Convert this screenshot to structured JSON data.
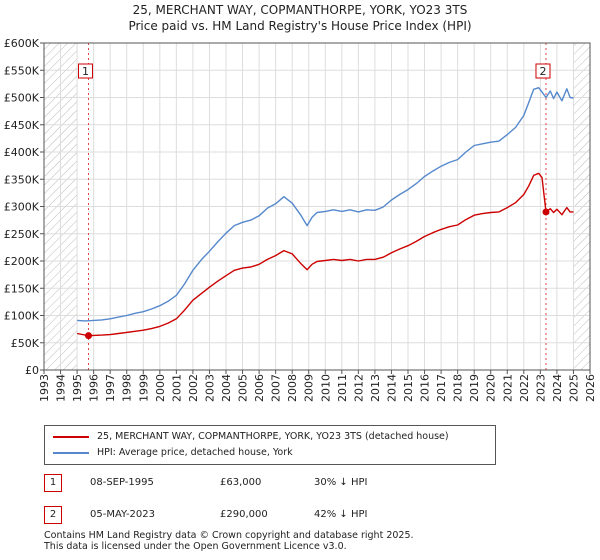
{
  "title_line1": "25, MERCHANT WAY, COPMANTHORPE, YORK, YO23 3TS",
  "title_line2": "Price paid vs. HM Land Registry's House Price Index (HPI)",
  "chart_data": {
    "type": "line",
    "title": "25, MERCHANT WAY, COPMANTHORPE, YORK, YO23 3TS — Price paid vs. HM Land Registry's House Price Index (HPI)",
    "xlabel": "",
    "ylabel": "",
    "xlim": [
      1993,
      2026
    ],
    "ylim": [
      0,
      600000
    ],
    "x_ticks": [
      1993,
      1994,
      1995,
      1996,
      1997,
      1998,
      1999,
      2000,
      2001,
      2002,
      2003,
      2004,
      2005,
      2006,
      2007,
      2008,
      2009,
      2010,
      2011,
      2012,
      2013,
      2014,
      2015,
      2016,
      2017,
      2018,
      2019,
      2020,
      2021,
      2022,
      2023,
      2024,
      2025,
      2026
    ],
    "y_ticks": [
      0,
      50000,
      100000,
      150000,
      200000,
      250000,
      300000,
      350000,
      400000,
      450000,
      500000,
      550000,
      600000
    ],
    "y_tick_labels": [
      "£0",
      "£50K",
      "£100K",
      "£150K",
      "£200K",
      "£250K",
      "£300K",
      "£350K",
      "£400K",
      "£450K",
      "£500K",
      "£550K",
      "£600K"
    ],
    "grid": true,
    "hatched_regions": [
      [
        1993,
        1995.0
      ],
      [
        2025.0,
        2026
      ]
    ],
    "series": [
      {
        "name": "25, MERCHANT WAY, COPMANTHORPE, YORK, YO23 3TS (detached house)",
        "color": "#cc0000",
        "x": [
          1995.0,
          1995.69,
          1996.0,
          1996.5,
          1997.0,
          1997.5,
          1998.0,
          1998.5,
          1999.0,
          1999.5,
          2000.0,
          2000.5,
          2001.0,
          2001.5,
          2002.0,
          2002.5,
          2003.0,
          2003.5,
          2004.0,
          2004.5,
          2005.0,
          2005.5,
          2006.0,
          2006.5,
          2007.0,
          2007.5,
          2008.0,
          2008.5,
          2008.9,
          2009.2,
          2009.5,
          2010.0,
          2010.5,
          2011.0,
          2011.5,
          2012.0,
          2012.5,
          2013.0,
          2013.5,
          2014.0,
          2014.5,
          2015.0,
          2015.5,
          2016.0,
          2016.5,
          2017.0,
          2017.5,
          2018.0,
          2018.5,
          2019.0,
          2019.5,
          2020.0,
          2020.5,
          2021.0,
          2021.5,
          2022.0,
          2022.3,
          2022.6,
          2022.9,
          2023.1,
          2023.34,
          2023.6,
          2023.8,
          2024.0,
          2024.3,
          2024.6,
          2024.8,
          2025.0
        ],
        "values": [
          67000,
          63000,
          63500,
          64000,
          65000,
          67000,
          69000,
          71000,
          73000,
          76000,
          80000,
          86000,
          94000,
          110000,
          128000,
          140000,
          152000,
          163000,
          173000,
          183000,
          187000,
          189000,
          194000,
          203000,
          210000,
          219000,
          213000,
          196000,
          184000,
          194000,
          199000,
          201000,
          203000,
          201000,
          203000,
          200000,
          203000,
          203000,
          207000,
          215000,
          222000,
          228000,
          236000,
          245000,
          252000,
          258000,
          263000,
          266000,
          276000,
          284000,
          287000,
          289000,
          290000,
          298000,
          307000,
          322000,
          338000,
          357000,
          361000,
          353000,
          290000,
          296000,
          289000,
          295000,
          285000,
          298000,
          290000,
          290000
        ]
      },
      {
        "name": "HPI: Average price, detached house, York",
        "color": "#5588cc",
        "x": [
          1995.0,
          1995.5,
          1996.0,
          1996.5,
          1997.0,
          1997.5,
          1998.0,
          1998.5,
          1999.0,
          1999.5,
          2000.0,
          2000.5,
          2001.0,
          2001.5,
          2002.0,
          2002.5,
          2003.0,
          2003.5,
          2004.0,
          2004.5,
          2005.0,
          2005.5,
          2006.0,
          2006.5,
          2007.0,
          2007.5,
          2008.0,
          2008.5,
          2008.9,
          2009.2,
          2009.5,
          2010.0,
          2010.5,
          2011.0,
          2011.5,
          2012.0,
          2012.5,
          2013.0,
          2013.5,
          2014.0,
          2014.5,
          2015.0,
          2015.5,
          2016.0,
          2016.5,
          2017.0,
          2017.5,
          2018.0,
          2018.5,
          2019.0,
          2019.5,
          2020.0,
          2020.5,
          2021.0,
          2021.5,
          2022.0,
          2022.3,
          2022.6,
          2022.9,
          2023.1,
          2023.34,
          2023.6,
          2023.8,
          2024.0,
          2024.3,
          2024.6,
          2024.8,
          2025.0
        ],
        "values": [
          91000,
          90000,
          91000,
          92000,
          94000,
          97000,
          100000,
          104000,
          107000,
          112000,
          118000,
          126000,
          137000,
          158000,
          183000,
          202000,
          218000,
          235000,
          251000,
          265000,
          271000,
          275000,
          283000,
          297000,
          305000,
          318000,
          306000,
          285000,
          265000,
          280000,
          289000,
          291000,
          294000,
          291000,
          294000,
          290000,
          294000,
          293000,
          299000,
          312000,
          322000,
          331000,
          342000,
          355000,
          365000,
          374000,
          381000,
          386000,
          400000,
          412000,
          415000,
          418000,
          420000,
          432000,
          445000,
          467000,
          491000,
          515000,
          518000,
          510000,
          500000,
          512000,
          498000,
          510000,
          494000,
          516000,
          500000,
          499000
        ]
      }
    ],
    "annotations": [
      {
        "label": "1",
        "x": 1995.69,
        "y": 63000
      },
      {
        "label": "2",
        "x": 2023.34,
        "y": 290000
      }
    ]
  },
  "legend": {
    "series1": "25, MERCHANT WAY, COPMANTHORPE, YORK, YO23 3TS (detached house)",
    "series2": "HPI: Average price, detached house, York"
  },
  "table": [
    {
      "num": "1",
      "date": "08-SEP-1995",
      "price": "£63,000",
      "hpi": "30% ↓ HPI"
    },
    {
      "num": "2",
      "date": "05-MAY-2023",
      "price": "£290,000",
      "hpi": "42% ↓ HPI"
    }
  ],
  "footer": {
    "line1": "Contains HM Land Registry data © Crown copyright and database right 2025.",
    "line2": "This data is licensed under the Open Government Licence v3.0."
  }
}
